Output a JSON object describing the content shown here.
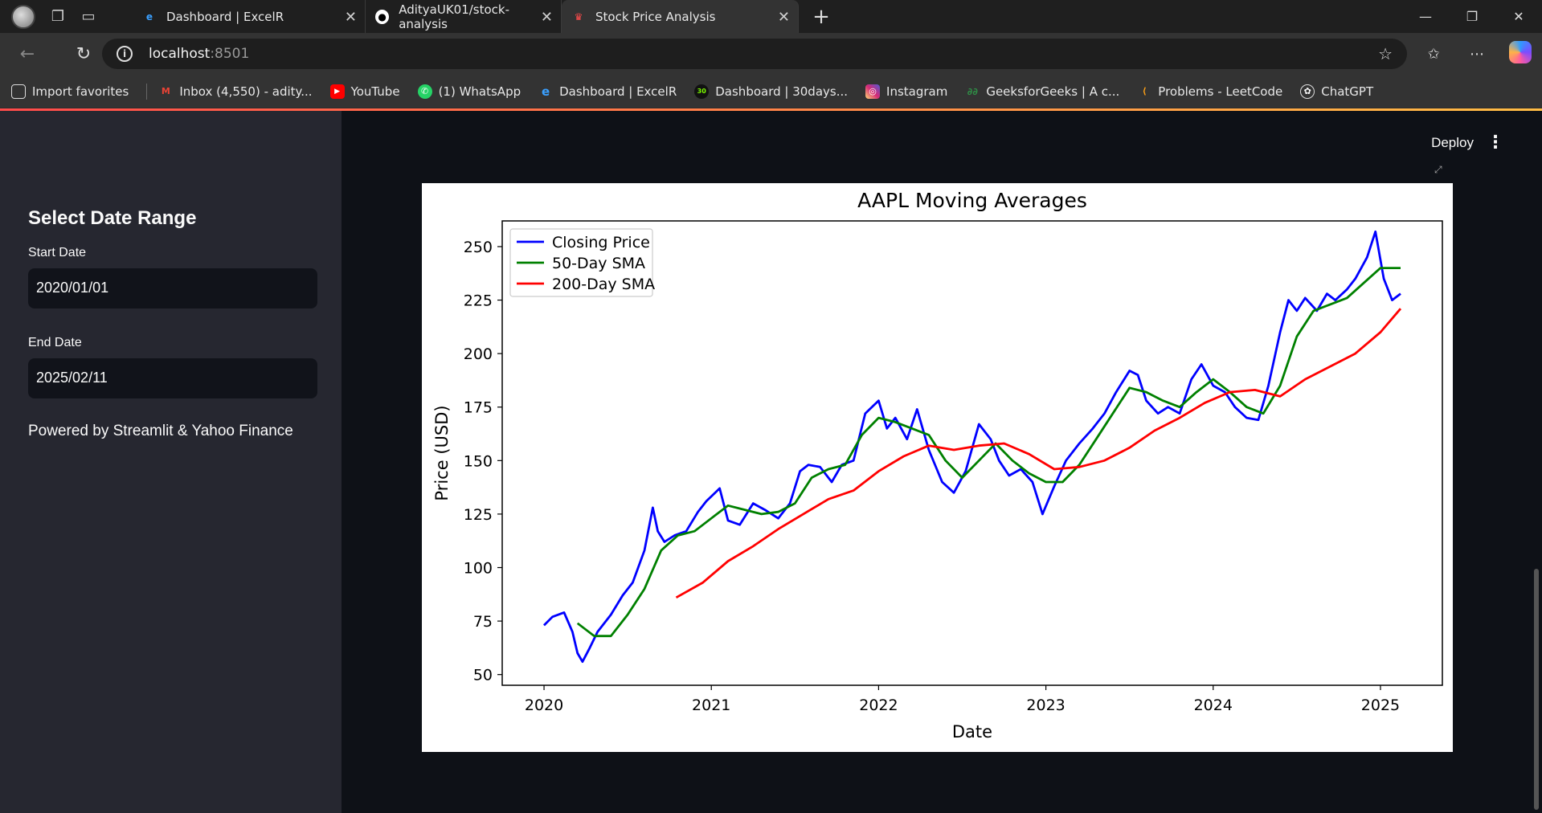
{
  "browser": {
    "tabs": [
      {
        "title": "Dashboard | ExcelR",
        "active": false
      },
      {
        "title": "AdityaUK01/stock-analysis",
        "active": false
      },
      {
        "title": "Stock Price Analysis",
        "active": true
      }
    ],
    "url_host": "localhost",
    "url_port": ":8501",
    "bookmarks": [
      {
        "label": "Import favorites",
        "icon": "import-icon"
      },
      {
        "label": "Inbox (4,550) - adity...",
        "icon": "gmail-icon"
      },
      {
        "label": "YouTube",
        "icon": "youtube-icon"
      },
      {
        "label": "(1) WhatsApp",
        "icon": "whatsapp-icon"
      },
      {
        "label": "Dashboard | ExcelR",
        "icon": "excelr-icon"
      },
      {
        "label": "Dashboard | 30days...",
        "icon": "30days-icon"
      },
      {
        "label": "Instagram",
        "icon": "instagram-icon"
      },
      {
        "label": "GeeksforGeeks | A c...",
        "icon": "gfg-icon"
      },
      {
        "label": "Problems - LeetCode",
        "icon": "leetcode-icon"
      },
      {
        "label": "ChatGPT",
        "icon": "chatgpt-icon"
      }
    ]
  },
  "sidebar": {
    "title": "Select Date Range",
    "start_label": "Start Date",
    "start_value": "2020/01/01",
    "end_label": "End Date",
    "end_value": "2025/02/11",
    "footer": "Powered by Streamlit & Yahoo Finance"
  },
  "header": {
    "deploy_label": "Deploy"
  },
  "chart_data": {
    "type": "line",
    "title": "AAPL Moving Averages",
    "xlabel": "Date",
    "ylabel": "Price (USD)",
    "xlim": [
      2019.75,
      2025.37
    ],
    "ylim": [
      45,
      262
    ],
    "x_ticks": [
      "2020",
      "2021",
      "2022",
      "2023",
      "2024",
      "2025"
    ],
    "y_ticks": [
      50,
      75,
      100,
      125,
      150,
      175,
      200,
      225,
      250
    ],
    "legend_position": "top-left",
    "grid": false,
    "series": [
      {
        "name": "Closing Price",
        "color": "#0000ff",
        "points": [
          [
            2020.0,
            73
          ],
          [
            2020.05,
            77
          ],
          [
            2020.12,
            79
          ],
          [
            2020.17,
            70
          ],
          [
            2020.2,
            60
          ],
          [
            2020.23,
            56
          ],
          [
            2020.27,
            62
          ],
          [
            2020.32,
            70
          ],
          [
            2020.4,
            78
          ],
          [
            2020.47,
            87
          ],
          [
            2020.53,
            93
          ],
          [
            2020.6,
            108
          ],
          [
            2020.65,
            128
          ],
          [
            2020.68,
            117
          ],
          [
            2020.72,
            112
          ],
          [
            2020.78,
            115
          ],
          [
            2020.85,
            117
          ],
          [
            2020.92,
            126
          ],
          [
            2020.97,
            131
          ],
          [
            2021.05,
            137
          ],
          [
            2021.1,
            122
          ],
          [
            2021.17,
            120
          ],
          [
            2021.25,
            130
          ],
          [
            2021.32,
            127
          ],
          [
            2021.4,
            123
          ],
          [
            2021.47,
            130
          ],
          [
            2021.53,
            145
          ],
          [
            2021.58,
            148
          ],
          [
            2021.65,
            147
          ],
          [
            2021.72,
            140
          ],
          [
            2021.78,
            148
          ],
          [
            2021.85,
            150
          ],
          [
            2021.92,
            172
          ],
          [
            2022.0,
            178
          ],
          [
            2022.05,
            165
          ],
          [
            2022.1,
            170
          ],
          [
            2022.17,
            160
          ],
          [
            2022.23,
            174
          ],
          [
            2022.3,
            155
          ],
          [
            2022.38,
            140
          ],
          [
            2022.45,
            135
          ],
          [
            2022.52,
            145
          ],
          [
            2022.6,
            167
          ],
          [
            2022.67,
            160
          ],
          [
            2022.72,
            150
          ],
          [
            2022.78,
            143
          ],
          [
            2022.85,
            146
          ],
          [
            2022.92,
            140
          ],
          [
            2022.98,
            125
          ],
          [
            2023.05,
            138
          ],
          [
            2023.12,
            150
          ],
          [
            2023.2,
            158
          ],
          [
            2023.28,
            165
          ],
          [
            2023.35,
            172
          ],
          [
            2023.42,
            182
          ],
          [
            2023.5,
            192
          ],
          [
            2023.55,
            190
          ],
          [
            2023.6,
            178
          ],
          [
            2023.67,
            172
          ],
          [
            2023.73,
            175
          ],
          [
            2023.8,
            172
          ],
          [
            2023.87,
            188
          ],
          [
            2023.93,
            195
          ],
          [
            2024.0,
            185
          ],
          [
            2024.07,
            182
          ],
          [
            2024.13,
            175
          ],
          [
            2024.2,
            170
          ],
          [
            2024.27,
            169
          ],
          [
            2024.33,
            185
          ],
          [
            2024.4,
            210
          ],
          [
            2024.45,
            225
          ],
          [
            2024.5,
            220
          ],
          [
            2024.55,
            226
          ],
          [
            2024.62,
            220
          ],
          [
            2024.68,
            228
          ],
          [
            2024.73,
            225
          ],
          [
            2024.8,
            230
          ],
          [
            2024.85,
            235
          ],
          [
            2024.92,
            245
          ],
          [
            2024.97,
            257
          ],
          [
            2025.02,
            235
          ],
          [
            2025.07,
            225
          ],
          [
            2025.12,
            228
          ]
        ]
      },
      {
        "name": "50-Day SMA",
        "color": "#008000",
        "points": [
          [
            2020.2,
            74
          ],
          [
            2020.3,
            68
          ],
          [
            2020.4,
            68
          ],
          [
            2020.5,
            78
          ],
          [
            2020.6,
            90
          ],
          [
            2020.7,
            108
          ],
          [
            2020.8,
            115
          ],
          [
            2020.9,
            117
          ],
          [
            2021.0,
            123
          ],
          [
            2021.1,
            129
          ],
          [
            2021.2,
            127
          ],
          [
            2021.3,
            125
          ],
          [
            2021.4,
            126
          ],
          [
            2021.5,
            130
          ],
          [
            2021.6,
            142
          ],
          [
            2021.7,
            146
          ],
          [
            2021.8,
            148
          ],
          [
            2021.9,
            162
          ],
          [
            2022.0,
            170
          ],
          [
            2022.1,
            168
          ],
          [
            2022.2,
            165
          ],
          [
            2022.3,
            162
          ],
          [
            2022.4,
            150
          ],
          [
            2022.5,
            142
          ],
          [
            2022.6,
            150
          ],
          [
            2022.7,
            158
          ],
          [
            2022.8,
            150
          ],
          [
            2022.9,
            144
          ],
          [
            2023.0,
            140
          ],
          [
            2023.1,
            140
          ],
          [
            2023.2,
            148
          ],
          [
            2023.3,
            160
          ],
          [
            2023.4,
            172
          ],
          [
            2023.5,
            184
          ],
          [
            2023.6,
            182
          ],
          [
            2023.7,
            178
          ],
          [
            2023.8,
            175
          ],
          [
            2023.9,
            182
          ],
          [
            2024.0,
            188
          ],
          [
            2024.1,
            182
          ],
          [
            2024.2,
            175
          ],
          [
            2024.3,
            172
          ],
          [
            2024.4,
            185
          ],
          [
            2024.5,
            208
          ],
          [
            2024.6,
            220
          ],
          [
            2024.7,
            223
          ],
          [
            2024.8,
            226
          ],
          [
            2024.9,
            233
          ],
          [
            2025.0,
            240
          ],
          [
            2025.12,
            240
          ]
        ]
      },
      {
        "name": "200-Day SMA",
        "color": "#ff0000",
        "points": [
          [
            2020.79,
            86
          ],
          [
            2020.95,
            93
          ],
          [
            2021.1,
            103
          ],
          [
            2021.25,
            110
          ],
          [
            2021.4,
            118
          ],
          [
            2021.55,
            125
          ],
          [
            2021.7,
            132
          ],
          [
            2021.85,
            136
          ],
          [
            2022.0,
            145
          ],
          [
            2022.15,
            152
          ],
          [
            2022.3,
            157
          ],
          [
            2022.45,
            155
          ],
          [
            2022.6,
            157
          ],
          [
            2022.75,
            158
          ],
          [
            2022.9,
            153
          ],
          [
            2023.05,
            146
          ],
          [
            2023.2,
            147
          ],
          [
            2023.35,
            150
          ],
          [
            2023.5,
            156
          ],
          [
            2023.65,
            164
          ],
          [
            2023.8,
            170
          ],
          [
            2023.95,
            177
          ],
          [
            2024.1,
            182
          ],
          [
            2024.25,
            183
          ],
          [
            2024.4,
            180
          ],
          [
            2024.55,
            188
          ],
          [
            2024.7,
            194
          ],
          [
            2024.85,
            200
          ],
          [
            2025.0,
            210
          ],
          [
            2025.12,
            221
          ]
        ]
      }
    ]
  }
}
